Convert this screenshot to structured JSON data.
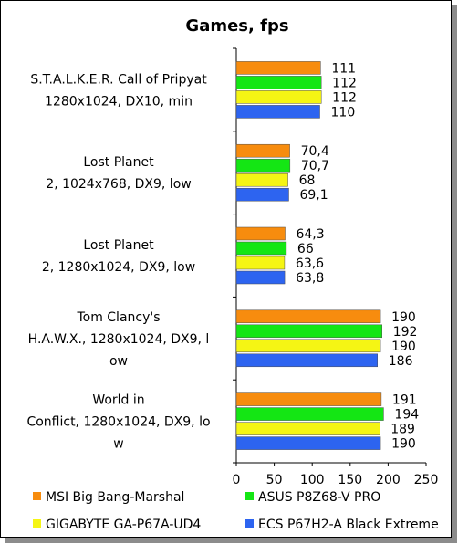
{
  "chart_data": {
    "type": "bar",
    "orientation": "horizontal",
    "title": "Games, fps",
    "xlim": [
      0,
      250
    ],
    "xticks": [
      "0",
      "50",
      "100",
      "150",
      "200",
      "250"
    ],
    "grid": false,
    "legend_position": "bottom",
    "categories": [
      [
        "S.T.A.L.K.E.R. Call of Pripyat",
        "1280x1024, DX10, min"
      ],
      [
        "Lost Planet",
        "2, 1024x768, DX9, low"
      ],
      [
        "Lost Planet",
        "2, 1280x1024, DX9, low"
      ],
      [
        "Tom Clancy's",
        "H.A.W.X., 1280x1024, DX9, l",
        "ow"
      ],
      [
        "World in",
        "Conflict, 1280x1024, DX9, lo",
        "w"
      ]
    ],
    "series": [
      {
        "name": "MSI Big Bang-Marshal",
        "color": "#f78c0e",
        "values": [
          111,
          70.4,
          64.3,
          190,
          191
        ],
        "labels": [
          "111",
          "70,4",
          "64,3",
          "190",
          "191"
        ]
      },
      {
        "name": "ASUS P8Z68-V PRO",
        "color": "#14e614",
        "values": [
          112,
          70.7,
          66,
          192,
          194
        ],
        "labels": [
          "112",
          "70,7",
          "66",
          "192",
          "194"
        ]
      },
      {
        "name": "GIGABYTE GA-P67A-UD4",
        "color": "#f5f514",
        "values": [
          112,
          68,
          63.6,
          190,
          189
        ],
        "labels": [
          "112",
          "68",
          "63,6",
          "190",
          "189"
        ]
      },
      {
        "name": "ECS P67H2-A Black Extreme",
        "color": "#2d64f0",
        "values": [
          110,
          69.1,
          63.8,
          186,
          190
        ],
        "labels": [
          "110",
          "69,1",
          "63,8",
          "186",
          "190"
        ]
      }
    ]
  }
}
